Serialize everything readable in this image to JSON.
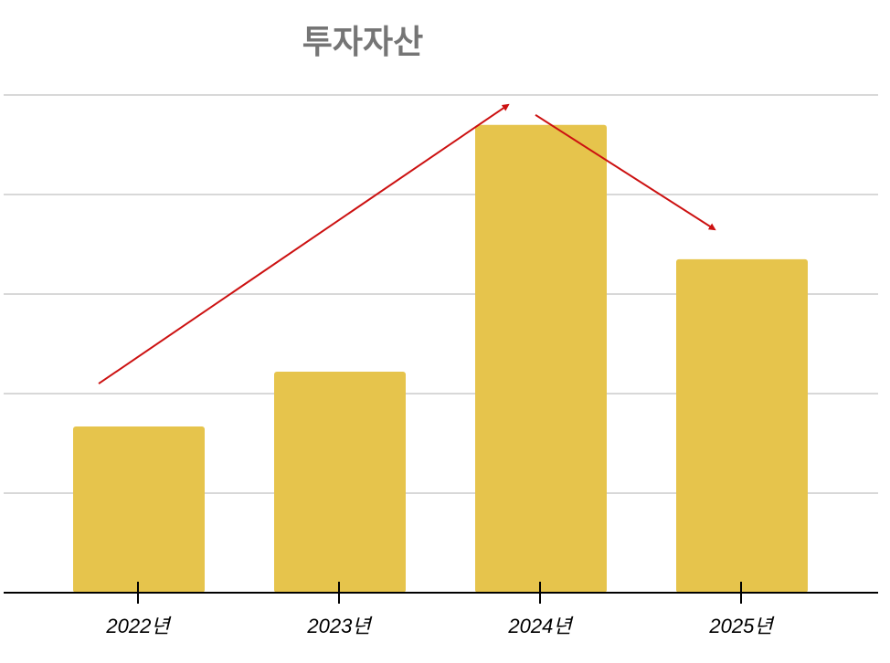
{
  "chart_data": {
    "type": "bar",
    "title": "투자자산",
    "categories": [
      "2022년",
      "2023년",
      "2024년",
      "2025년"
    ],
    "values": [
      1.67,
      2.22,
      4.7,
      3.35
    ],
    "ylim": [
      0,
      5
    ],
    "grid": true,
    "legend": "none",
    "annotations": [
      {
        "type": "arrow",
        "from": {
          "category": "2022년",
          "value": 2.1
        },
        "to": {
          "category": "2024년",
          "value": 4.9
        }
      },
      {
        "type": "arrow",
        "from": {
          "category": "2024년",
          "value": 4.8
        },
        "to": {
          "category": "2025년",
          "value": 3.65
        }
      }
    ]
  },
  "colors": {
    "bar": "#E6C44C",
    "grid": "#CCCCCC",
    "axis": "#000000",
    "title": "#757575",
    "arrow": "#CC1111"
  }
}
